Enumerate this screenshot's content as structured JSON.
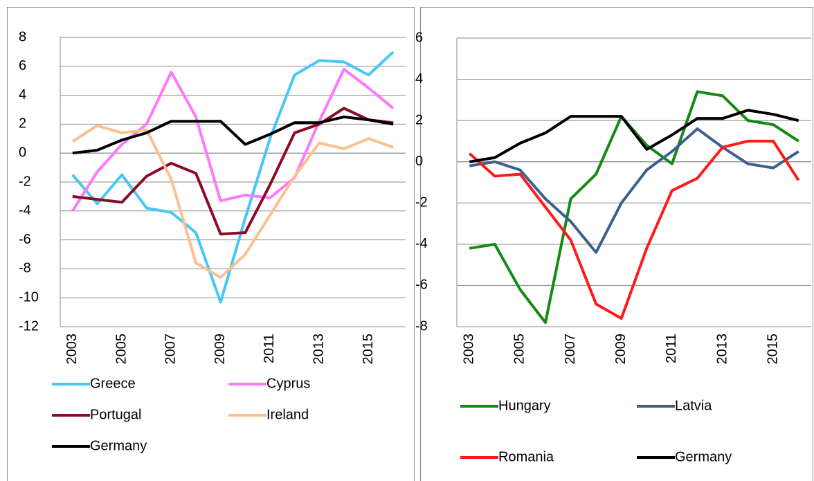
{
  "chart_data": [
    {
      "type": "line",
      "categories": [
        "2003",
        null,
        "2005",
        null,
        "2007",
        null,
        "2009",
        null,
        "2011",
        null,
        "2013",
        null,
        "2015",
        null
      ],
      "ylim": [
        -12,
        8
      ],
      "yticks": [
        -12,
        -10,
        -8,
        -6,
        -4,
        -2,
        0,
        2,
        4,
        6,
        8
      ],
      "grid": true,
      "legend": "bottom",
      "series": [
        {
          "name": "Greece",
          "color": "#45c8f5",
          "values": [
            -1.5,
            -3.5,
            -1.5,
            -3.8,
            -4.1,
            -5.5,
            -10.3,
            -4.5,
            1.0,
            5.4,
            6.4,
            6.3,
            5.4,
            7.0
          ]
        },
        {
          "name": "Cyprus",
          "color": "#ff77ff",
          "values": [
            -4.0,
            -1.3,
            0.6,
            2.0,
            5.6,
            2.5,
            -3.3,
            -2.9,
            -3.1,
            -1.7,
            2.2,
            5.8,
            4.5,
            3.1
          ]
        },
        {
          "name": "Portugal",
          "color": "#8b0a25",
          "values": [
            -3.0,
            -3.2,
            -3.4,
            -1.6,
            -0.7,
            -1.4,
            -5.6,
            -5.5,
            -2.2,
            1.4,
            2.0,
            3.1,
            2.3,
            2.1
          ]
        },
        {
          "name": "Ireland",
          "color": "#fac090",
          "values": [
            0.8,
            1.9,
            1.4,
            1.6,
            -1.8,
            -7.6,
            -8.6,
            -7.0,
            -4.3,
            -1.6,
            0.7,
            0.3,
            1.0,
            0.4
          ]
        },
        {
          "name": "Germany",
          "color": "#000000",
          "values": [
            0.0,
            0.2,
            0.9,
            1.4,
            2.2,
            2.2,
            2.2,
            0.6,
            1.3,
            2.1,
            2.1,
            2.5,
            2.3,
            2.0
          ]
        }
      ]
    },
    {
      "type": "line",
      "categories": [
        "2003",
        null,
        "2005",
        null,
        "2007",
        null,
        "2009",
        null,
        "2011",
        null,
        "2013",
        null,
        "2015",
        null
      ],
      "ylim": [
        -8,
        6
      ],
      "yticks": [
        -8,
        -6,
        -4,
        -2,
        0,
        2,
        4,
        6
      ],
      "grid": true,
      "legend": "bottom",
      "series": [
        {
          "name": "Hungary",
          "color": "#138a13",
          "values": [
            -4.2,
            -4.0,
            -6.2,
            -7.8,
            -1.8,
            -0.6,
            2.2,
            0.8,
            -0.1,
            3.4,
            3.2,
            2.0,
            1.8,
            1.0
          ]
        },
        {
          "name": "Latvia",
          "color": "#3e5e8e",
          "values": [
            -0.2,
            0.0,
            -0.4,
            -1.8,
            -2.9,
            -4.4,
            -2.0,
            -0.4,
            0.5,
            1.6,
            0.7,
            -0.1,
            -0.3,
            0.5
          ]
        },
        {
          "name": "Romania",
          "color": "#ff1a1a",
          "values": [
            0.4,
            -0.7,
            -0.6,
            -2.2,
            -3.8,
            -6.9,
            -7.6,
            -4.2,
            -1.4,
            -0.8,
            0.7,
            1.0,
            1.0,
            -0.9
          ]
        },
        {
          "name": "Germany",
          "color": "#000000",
          "values": [
            0.0,
            0.2,
            0.9,
            1.4,
            2.2,
            2.2,
            2.2,
            0.6,
            1.3,
            2.1,
            2.1,
            2.5,
            2.3,
            2.0
          ]
        }
      ]
    }
  ]
}
